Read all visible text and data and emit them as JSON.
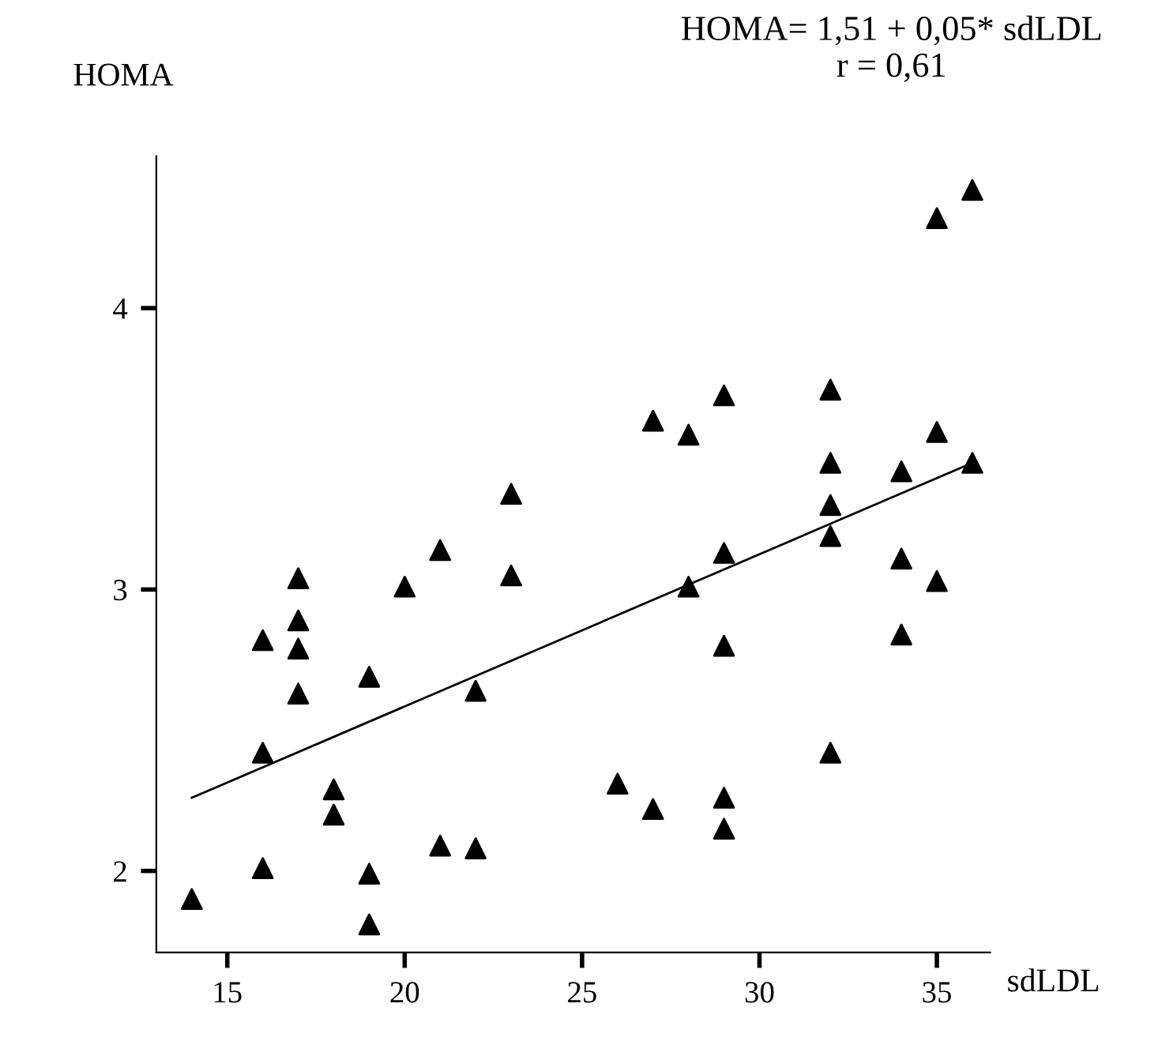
{
  "chart_data": {
    "type": "scatter",
    "xlabel": "sdLDL",
    "ylabel": "HOMA",
    "annotations": [
      "HOMA= 1,51 + 0,05* sdLDL\nr = 0,61"
    ],
    "xlim": [
      13,
      36.5
    ],
    "ylim": [
      1.71,
      4.54
    ],
    "xticks": [
      15,
      20,
      25,
      30,
      35
    ],
    "yticks": [
      2,
      3,
      4
    ],
    "grid": false,
    "legend": false,
    "series": [
      {
        "marker": "triangle",
        "color": "#000000",
        "x": [
          14,
          16,
          16,
          16,
          17,
          17,
          17,
          17,
          18,
          18,
          19,
          19,
          19,
          20,
          21,
          21,
          22,
          22,
          23,
          23,
          26,
          27,
          27,
          28,
          28,
          29,
          29,
          29,
          29,
          29,
          32,
          32,
          32,
          32,
          32,
          34,
          34,
          34,
          35,
          35,
          35,
          36,
          36
        ],
        "values": [
          1.9,
          2.82,
          2.42,
          2.01,
          3.04,
          2.89,
          2.79,
          2.63,
          2.29,
          2.2,
          2.69,
          1.99,
          1.81,
          3.01,
          3.14,
          2.09,
          2.64,
          2.08,
          3.34,
          3.05,
          2.31,
          3.6,
          2.22,
          3.55,
          3.01,
          3.69,
          3.13,
          2.8,
          2.26,
          2.15,
          3.71,
          3.45,
          3.3,
          3.19,
          2.42,
          3.42,
          3.11,
          2.84,
          4.32,
          3.56,
          3.03,
          4.42,
          3.45
        ]
      },
      {
        "type": "line",
        "color": "#000000",
        "x": [
          14,
          36
        ],
        "values": [
          2.26,
          3.45
        ]
      }
    ]
  }
}
